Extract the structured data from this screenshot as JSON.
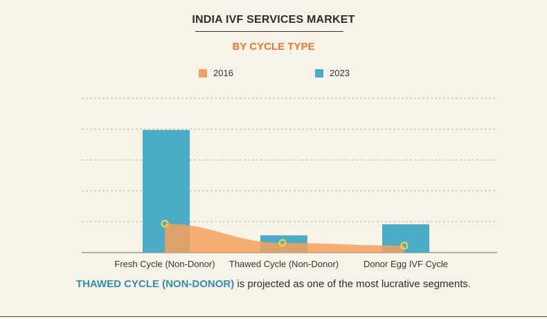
{
  "header": {
    "title": "INDIA IVF SERVICES MARKET",
    "subtitle": "BY CYCLE TYPE"
  },
  "legend": [
    {
      "label": "2016",
      "color": "#f5a05c"
    },
    {
      "label": "2023",
      "color": "#4bacc6"
    }
  ],
  "footer": {
    "highlight": "THAWED CYCLE (NON-DONOR)",
    "text": " is projected as one of the most lucrative segments."
  },
  "colors": {
    "bar_2023": "#4bacc6",
    "area_2016": "#f5a05c",
    "marker_2016": "#f3d84a",
    "grid": "#b9b3a8"
  },
  "chart_data": {
    "type": "bar",
    "categories": [
      "Fresh Cycle (Non-Donor)",
      "Thawed Cycle (Non-Donor)",
      "Donor Egg IVF Cycle"
    ],
    "series": [
      {
        "name": "2016",
        "style": "area",
        "values": [
          42,
          14,
          10
        ]
      },
      {
        "name": "2023",
        "style": "bar",
        "values": [
          178,
          25,
          41
        ]
      }
    ],
    "ylim": [
      0,
      224
    ],
    "grid": true,
    "legend_position": "top"
  }
}
